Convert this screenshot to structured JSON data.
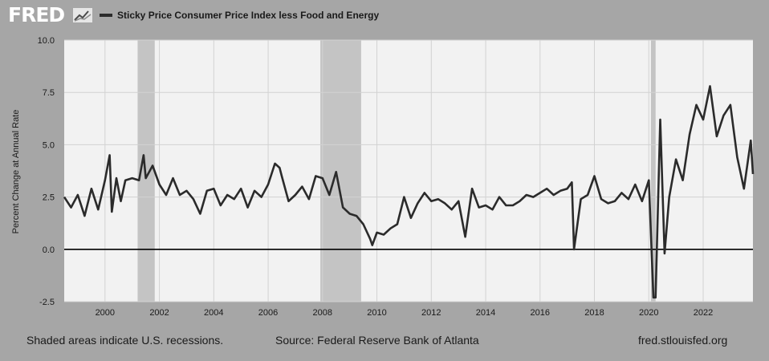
{
  "brand": {
    "logo_text": "FRED",
    "logo_mark": "chart-line-logo-icon"
  },
  "colors": {
    "background": "#a6a6a6",
    "plot_area": "#f2f2f2",
    "grid": "#d2d2d2",
    "series": "#2b2b2b",
    "recession": "#c4c4c4",
    "zero_line": "#000000"
  },
  "footer": {
    "recession_note": "Shaded areas indicate U.S. recessions.",
    "source": "Source: Federal Reserve Bank of Atlanta",
    "site": "fred.stlouisfed.org"
  },
  "chart_data": {
    "type": "line",
    "series_name": "Sticky Price Consumer Price Index less Food and Energy",
    "ylabel": "Percent Change at Annual Rate",
    "xlim": [
      1998.5,
      2023.83
    ],
    "ylim": [
      -2.5,
      10.0
    ],
    "yticks": [
      -2.5,
      0.0,
      2.5,
      5.0,
      7.5,
      10.0
    ],
    "ytick_labels": [
      "-2.5",
      "0.0",
      "2.5",
      "5.0",
      "7.5",
      "10.0"
    ],
    "xticks": [
      2000,
      2002,
      2004,
      2006,
      2008,
      2010,
      2012,
      2014,
      2016,
      2018,
      2020,
      2022
    ],
    "xtick_labels": [
      "2000",
      "2002",
      "2004",
      "2006",
      "2008",
      "2010",
      "2012",
      "2014",
      "2016",
      "2018",
      "2020",
      "2022"
    ],
    "grid": true,
    "zero_line": true,
    "recessions": [
      [
        2001.2,
        2001.83
      ],
      [
        2007.92,
        2009.42
      ],
      [
        2020.08,
        2020.25
      ]
    ],
    "legend_position": "top-left",
    "x": [
      1998.5,
      1998.75,
      1999.0,
      1999.25,
      1999.5,
      1999.75,
      2000.0,
      2000.17,
      2000.25,
      2000.42,
      2000.58,
      2000.75,
      2001.0,
      2001.25,
      2001.42,
      2001.5,
      2001.75,
      2002.0,
      2002.25,
      2002.5,
      2002.75,
      2003.0,
      2003.25,
      2003.5,
      2003.75,
      2004.0,
      2004.25,
      2004.5,
      2004.75,
      2005.0,
      2005.25,
      2005.5,
      2005.75,
      2006.0,
      2006.25,
      2006.42,
      2006.5,
      2006.75,
      2007.0,
      2007.25,
      2007.5,
      2007.75,
      2008.0,
      2008.25,
      2008.5,
      2008.75,
      2009.0,
      2009.25,
      2009.5,
      2009.75,
      2009.83,
      2010.0,
      2010.25,
      2010.5,
      2010.75,
      2011.0,
      2011.25,
      2011.5,
      2011.75,
      2012.0,
      2012.25,
      2012.5,
      2012.75,
      2013.0,
      2013.25,
      2013.5,
      2013.75,
      2014.0,
      2014.25,
      2014.5,
      2014.75,
      2015.0,
      2015.25,
      2015.5,
      2015.75,
      2016.0,
      2016.25,
      2016.5,
      2016.75,
      2017.0,
      2017.17,
      2017.25,
      2017.5,
      2017.75,
      2018.0,
      2018.25,
      2018.5,
      2018.75,
      2019.0,
      2019.25,
      2019.5,
      2019.75,
      2020.0,
      2020.17,
      2020.25,
      2020.42,
      2020.58,
      2020.75,
      2021.0,
      2021.25,
      2021.5,
      2021.75,
      2022.0,
      2022.25,
      2022.5,
      2022.75,
      2023.0,
      2023.25,
      2023.5,
      2023.75,
      2023.83
    ],
    "y": [
      2.5,
      2.0,
      2.6,
      1.6,
      2.9,
      1.9,
      3.3,
      4.5,
      1.8,
      3.4,
      2.3,
      3.3,
      3.4,
      3.3,
      4.5,
      3.4,
      4.0,
      3.1,
      2.6,
      3.4,
      2.6,
      2.8,
      2.4,
      1.7,
      2.8,
      2.9,
      2.1,
      2.6,
      2.4,
      2.9,
      2.0,
      2.8,
      2.5,
      3.1,
      4.1,
      3.9,
      3.5,
      2.3,
      2.6,
      3.0,
      2.4,
      3.5,
      3.4,
      2.6,
      3.7,
      2.0,
      1.7,
      1.6,
      1.2,
      0.5,
      0.2,
      0.8,
      0.7,
      1.0,
      1.2,
      2.5,
      1.5,
      2.2,
      2.7,
      2.3,
      2.4,
      2.2,
      1.9,
      2.3,
      0.6,
      2.9,
      2.0,
      2.1,
      1.9,
      2.5,
      2.1,
      2.1,
      2.3,
      2.6,
      2.5,
      2.7,
      2.9,
      2.6,
      2.8,
      2.9,
      3.2,
      0.0,
      2.4,
      2.6,
      3.5,
      2.4,
      2.2,
      2.3,
      2.7,
      2.4,
      3.1,
      2.3,
      3.3,
      -2.3,
      -2.3,
      6.2,
      -0.2,
      2.5,
      4.3,
      3.3,
      5.5,
      6.9,
      6.2,
      7.8,
      5.4,
      6.4,
      6.9,
      4.4,
      2.9,
      5.2,
      3.6
    ]
  }
}
